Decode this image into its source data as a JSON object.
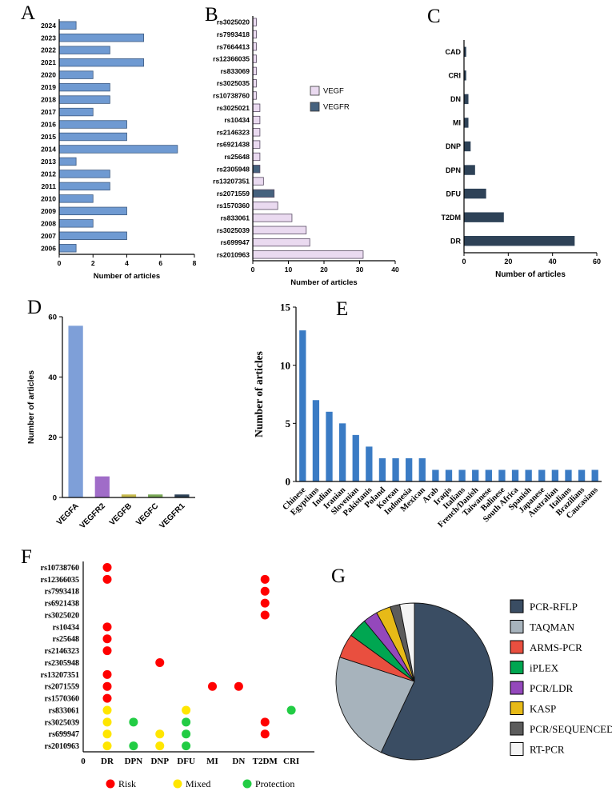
{
  "figure": {
    "background": "#ffffff",
    "description": "Seven-panel scientific figure of VEGF/VEGFR polymorphism literature statistics"
  },
  "panels": [
    {
      "label": "A",
      "name": "articles-per-year"
    },
    {
      "label": "B",
      "name": "articles-per-snp"
    },
    {
      "label": "C",
      "name": "articles-per-condition"
    },
    {
      "label": "D",
      "name": "articles-per-gene"
    },
    {
      "label": "E",
      "name": "articles-per-ethnicity"
    },
    {
      "label": "F",
      "name": "snp-disease-associations"
    },
    {
      "label": "G",
      "name": "genotyping-methods"
    }
  ],
  "chart_data": [
    {
      "id": "A",
      "type": "bar",
      "orientation": "horizontal",
      "xlabel": "Number of articles",
      "categories": [
        "2024",
        "2023",
        "2022",
        "2021",
        "2020",
        "2019",
        "2018",
        "2017",
        "2016",
        "2015",
        "2014",
        "2013",
        "2012",
        "2011",
        "2010",
        "2009",
        "2008",
        "2007",
        "2006"
      ],
      "values": [
        1,
        5,
        3,
        5,
        2,
        3,
        3,
        2,
        4,
        4,
        7,
        1,
        3,
        3,
        2,
        4,
        2,
        4,
        1
      ],
      "xlim": [
        0,
        8
      ],
      "xticks": [
        0,
        2,
        4,
        6,
        8
      ],
      "bar_color": "#6f9ad2",
      "bar_stroke": "#3d5a80",
      "grid": false
    },
    {
      "id": "B",
      "type": "bar",
      "orientation": "horizontal",
      "xlabel": "Number of articles",
      "categories": [
        "rs3025020",
        "rs7993418",
        "rs7664413",
        "rs12366035",
        "rs833069",
        "rs3025035",
        "rs10738760",
        "rs3025021",
        "rs10434",
        "rs2146323",
        "rs6921438",
        "rs25648",
        "rs2305948",
        "rs13207351",
        "rs2071559",
        "rs1570360",
        "rs833061",
        "rs3025039",
        "rs699947",
        "rs2010963"
      ],
      "values": [
        1,
        1,
        1,
        1,
        1,
        1,
        1,
        2,
        2,
        2,
        2,
        2,
        2,
        3,
        6,
        7,
        11,
        15,
        16,
        31
      ],
      "series_of_bar": [
        "VEGF",
        "VEGF",
        "VEGF",
        "VEGF",
        "VEGF",
        "VEGF",
        "VEGF",
        "VEGF",
        "VEGF",
        "VEGF",
        "VEGF",
        "VEGF",
        "VEGFR",
        "VEGF",
        "VEGFR",
        "VEGF",
        "VEGF",
        "VEGF",
        "VEGF",
        "VEGF"
      ],
      "legend": [
        {
          "label": "VEGF",
          "color": "#eadaf0"
        },
        {
          "label": "VEGFR",
          "color": "#46627e"
        }
      ],
      "legend_position": "inside-right",
      "xlim": [
        0,
        40
      ],
      "xticks": [
        0,
        10,
        20,
        30,
        40
      ],
      "bar_stroke": "#584a63",
      "grid": false
    },
    {
      "id": "C",
      "type": "bar",
      "orientation": "horizontal",
      "xlabel": "Number of articles",
      "categories": [
        "CAD",
        "CRI",
        "DN",
        "MI",
        "DNP",
        "DPN",
        "DFU",
        "T2DM",
        "DR"
      ],
      "values": [
        1,
        1,
        2,
        2,
        3,
        5,
        10,
        18,
        50
      ],
      "xlim": [
        0,
        60
      ],
      "xticks": [
        0,
        20,
        40,
        60
      ],
      "bar_color": "#2e4257",
      "grid": false
    },
    {
      "id": "D",
      "type": "bar",
      "orientation": "vertical",
      "ylabel": "Number of articles",
      "categories": [
        "VEGFA",
        "VEGFR2",
        "VEGFB",
        "VEGFC",
        "VEGFR1"
      ],
      "values": [
        57,
        7,
        1,
        1,
        1
      ],
      "bar_colors": [
        "#7e9fd8",
        "#a06cc8",
        "#c7bb4e",
        "#79a857",
        "#2e4257"
      ],
      "ylim": [
        0,
        60
      ],
      "yticks": [
        0,
        20,
        40,
        60
      ],
      "grid": false
    },
    {
      "id": "E",
      "type": "bar",
      "orientation": "vertical",
      "ylabel": "Number of articles",
      "categories": [
        "Chinese",
        "Egyptians",
        "Indian",
        "Iranian",
        "Slovenian",
        "Pakistanis",
        "Poland",
        "Korean",
        "Indonesia",
        "Mexican",
        "Arab",
        "Iraqis",
        "Italians",
        "French/Danish",
        "Taiwanese",
        "Balinese",
        "South Africa",
        "Spanish",
        "Japanese",
        "Australian",
        "Italians",
        "Brazilians",
        "Caucasians"
      ],
      "values": [
        13,
        7,
        6,
        5,
        4,
        3,
        2,
        2,
        2,
        2,
        1,
        1,
        1,
        1,
        1,
        1,
        1,
        1,
        1,
        1,
        1,
        1,
        1
      ],
      "ylim": [
        0,
        15
      ],
      "yticks": [
        0,
        5,
        10,
        15
      ],
      "bar_color": "#3a7bc4",
      "grid": false
    },
    {
      "id": "F",
      "type": "scatter",
      "subtype": "dot-matrix",
      "origin_label": "0",
      "rows": [
        "rs10738760",
        "rs12366035",
        "rs7993418",
        "rs6921438",
        "rs3025020",
        "rs10434",
        "rs25648",
        "rs2146323",
        "rs2305948",
        "rs13207351",
        "rs2071559",
        "rs1570360",
        "rs833061",
        "rs3025039",
        "rs699947",
        "rs2010963"
      ],
      "cols": [
        "DR",
        "DPN",
        "DNP",
        "DFU",
        "MI",
        "DN",
        "T2DM",
        "CRI"
      ],
      "legend": [
        {
          "label": "Risk",
          "color": "#ff0000"
        },
        {
          "label": "Mixed",
          "color": "#ffe600"
        },
        {
          "label": "Protection",
          "color": "#22cc44"
        }
      ],
      "points": [
        {
          "row": "rs10738760",
          "col": "DR",
          "status": "Risk"
        },
        {
          "row": "rs12366035",
          "col": "DR",
          "status": "Risk"
        },
        {
          "row": "rs12366035",
          "col": "T2DM",
          "status": "Risk"
        },
        {
          "row": "rs7993418",
          "col": "T2DM",
          "status": "Risk"
        },
        {
          "row": "rs6921438",
          "col": "T2DM",
          "status": "Risk"
        },
        {
          "row": "rs3025020",
          "col": "T2DM",
          "status": "Risk"
        },
        {
          "row": "rs10434",
          "col": "DR",
          "status": "Risk"
        },
        {
          "row": "rs25648",
          "col": "DR",
          "status": "Risk"
        },
        {
          "row": "rs2146323",
          "col": "DR",
          "status": "Risk"
        },
        {
          "row": "rs2305948",
          "col": "DNP",
          "status": "Risk"
        },
        {
          "row": "rs13207351",
          "col": "DR",
          "status": "Risk"
        },
        {
          "row": "rs2071559",
          "col": "DR",
          "status": "Risk"
        },
        {
          "row": "rs2071559",
          "col": "MI",
          "status": "Risk"
        },
        {
          "row": "rs2071559",
          "col": "DN",
          "status": "Risk"
        },
        {
          "row": "rs1570360",
          "col": "DR",
          "status": "Risk"
        },
        {
          "row": "rs833061",
          "col": "DR",
          "status": "Mixed"
        },
        {
          "row": "rs833061",
          "col": "DFU",
          "status": "Mixed"
        },
        {
          "row": "rs833061",
          "col": "CRI",
          "status": "Protection"
        },
        {
          "row": "rs3025039",
          "col": "DR",
          "status": "Mixed"
        },
        {
          "row": "rs3025039",
          "col": "DPN",
          "status": "Protection"
        },
        {
          "row": "rs3025039",
          "col": "DFU",
          "status": "Protection"
        },
        {
          "row": "rs3025039",
          "col": "T2DM",
          "status": "Risk"
        },
        {
          "row": "rs699947",
          "col": "DR",
          "status": "Mixed"
        },
        {
          "row": "rs699947",
          "col": "DNP",
          "status": "Mixed"
        },
        {
          "row": "rs699947",
          "col": "DFU",
          "status": "Protection"
        },
        {
          "row": "rs699947",
          "col": "T2DM",
          "status": "Risk"
        },
        {
          "row": "rs2010963",
          "col": "DR",
          "status": "Mixed"
        },
        {
          "row": "rs2010963",
          "col": "DPN",
          "status": "Protection"
        },
        {
          "row": "rs2010963",
          "col": "DNP",
          "status": "Mixed"
        },
        {
          "row": "rs2010963",
          "col": "DFU",
          "status": "Protection"
        }
      ]
    },
    {
      "id": "G",
      "type": "pie",
      "legend_position": "right",
      "slices": [
        {
          "label": "PCR-RFLP",
          "value": 57,
          "color": "#3a4d63"
        },
        {
          "label": "TAQMAN",
          "value": 23,
          "color": "#a7b3bc"
        },
        {
          "label": "ARMS-PCR",
          "value": 5,
          "color": "#e94f3f"
        },
        {
          "label": "iPLEX",
          "value": 4,
          "color": "#00a651"
        },
        {
          "label": "PCR/LDR",
          "value": 3,
          "color": "#9448bc"
        },
        {
          "label": "KASP",
          "value": 3,
          "color": "#e7ba17"
        },
        {
          "label": "PCR/SEQUENCED",
          "value": 2,
          "color": "#5c5c5c"
        },
        {
          "label": "RT-PCR",
          "value": 3,
          "color": "#f4f4f4"
        }
      ]
    }
  ]
}
